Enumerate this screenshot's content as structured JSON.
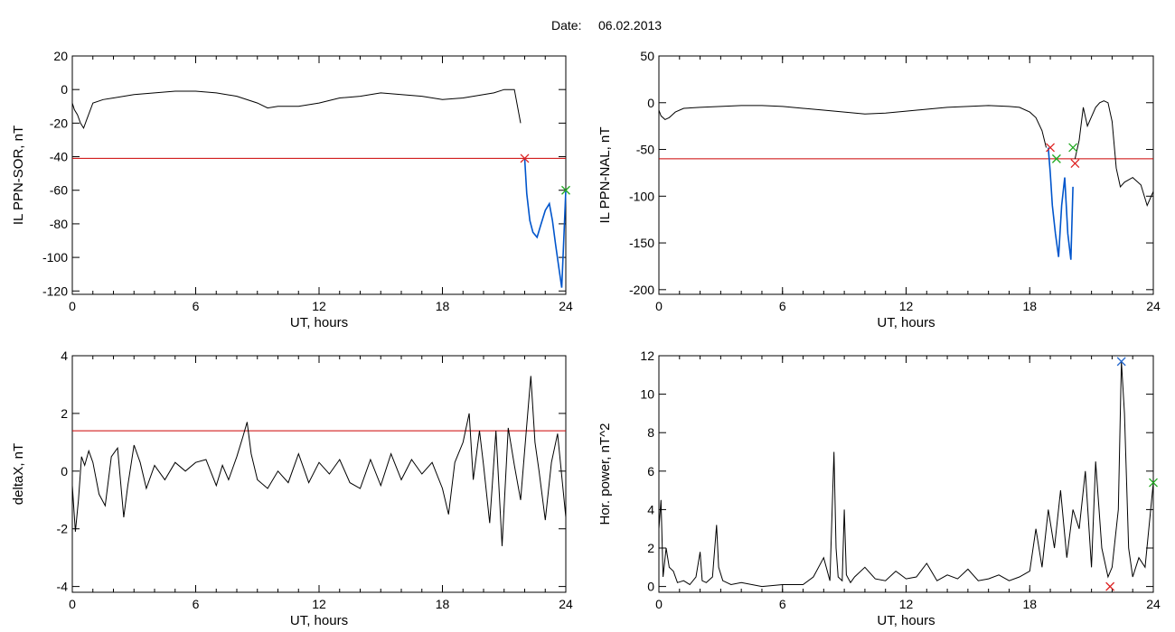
{
  "figure": {
    "title_label": "Date:",
    "title_value": "06.02.2013"
  },
  "colors": {
    "trace": "#000000",
    "threshold": "#cc0000",
    "highlight": "#0055cc",
    "marker_red": "#dd2222",
    "marker_green": "#22aa22",
    "marker_blue": "#2266cc"
  },
  "chart_data": [
    {
      "id": "ppn_sor",
      "type": "line",
      "xlabel": "UT, hours",
      "ylabel": "IL PPN-SOR, nT",
      "xlim": [
        0,
        24
      ],
      "ylim": [
        -122,
        20
      ],
      "xticks": [
        0,
        6,
        12,
        18,
        24
      ],
      "yticks": [
        20,
        0,
        -20,
        -40,
        -60,
        -80,
        -100,
        -120
      ],
      "threshold": -41,
      "series": [
        {
          "x": [
            0,
            0.1,
            0.25,
            0.4,
            0.55,
            0.7,
            1,
            1.5,
            2,
            3,
            4,
            5,
            6,
            7,
            8,
            9,
            9.5,
            10,
            11,
            12,
            13,
            14,
            15,
            16,
            17,
            18,
            19,
            20,
            20.5,
            21,
            21.5,
            21.8
          ],
          "y": [
            -8,
            -12,
            -15,
            -20,
            -23,
            -18,
            -8,
            -6,
            -5,
            -3,
            -2,
            -1,
            -1,
            -2,
            -4,
            -8,
            -11,
            -10,
            -10,
            -8,
            -5,
            -4,
            -2,
            -3,
            -4,
            -6,
            -5,
            -3,
            -2,
            0,
            0,
            -20
          ]
        },
        {
          "color": "highlight",
          "x": [
            22,
            22.1,
            22.25,
            22.4,
            22.6,
            22.8,
            23,
            23.2,
            23.35,
            23.5,
            23.65,
            23.8,
            23.9,
            24
          ],
          "y": [
            -41,
            -62,
            -78,
            -85,
            -88,
            -80,
            -72,
            -68,
            -78,
            -92,
            -105,
            -118,
            -90,
            -60
          ]
        }
      ],
      "markers": [
        {
          "x": 22.0,
          "y": -41,
          "color": "marker_red"
        },
        {
          "x": 24.0,
          "y": -60,
          "color": "marker_green"
        }
      ]
    },
    {
      "id": "ppn_nal",
      "type": "line",
      "xlabel": "UT, hours",
      "ylabel": "IL PPN-NAL, nT",
      "xlim": [
        0,
        24
      ],
      "ylim": [
        -205,
        50
      ],
      "xticks": [
        0,
        6,
        12,
        18,
        24
      ],
      "yticks": [
        50,
        0,
        -50,
        -100,
        -150,
        -200
      ],
      "threshold": -60,
      "series": [
        {
          "x": [
            0,
            0.1,
            0.3,
            0.5,
            0.8,
            1.2,
            2,
            3,
            4,
            5,
            6,
            7,
            8,
            9,
            10,
            11,
            12,
            13,
            14,
            15,
            16,
            17,
            17.5,
            18,
            18.3,
            18.6,
            18.8
          ],
          "y": [
            -8,
            -14,
            -18,
            -16,
            -10,
            -6,
            -5,
            -4,
            -3,
            -3,
            -4,
            -6,
            -8,
            -10,
            -12,
            -11,
            -9,
            -7,
            -5,
            -4,
            -3,
            -4,
            -5,
            -10,
            -16,
            -30,
            -48
          ]
        },
        {
          "color": "highlight",
          "x": [
            18.9,
            19.0,
            19.1,
            19.25,
            19.4,
            19.55,
            19.7,
            19.85,
            20.0,
            20.1
          ],
          "y": [
            -48,
            -75,
            -110,
            -140,
            -165,
            -110,
            -80,
            -140,
            -168,
            -90
          ]
        },
        {
          "x": [
            20.2,
            20.4,
            20.6,
            20.8,
            21.0,
            21.2,
            21.4,
            21.6,
            21.8,
            22.0,
            22.2,
            22.4,
            22.6,
            23.0,
            23.4,
            23.7,
            24.0
          ],
          "y": [
            -60,
            -40,
            -5,
            -25,
            -15,
            -5,
            0,
            2,
            0,
            -20,
            -70,
            -90,
            -85,
            -80,
            -88,
            -110,
            -95
          ]
        }
      ],
      "markers": [
        {
          "x": 19.0,
          "y": -48,
          "color": "marker_red"
        },
        {
          "x": 19.3,
          "y": -60,
          "color": "marker_green"
        },
        {
          "x": 20.1,
          "y": -48,
          "color": "marker_green"
        },
        {
          "x": 20.2,
          "y": -65,
          "color": "marker_red"
        }
      ]
    },
    {
      "id": "deltax",
      "type": "line",
      "xlabel": "UT, hours",
      "ylabel": "deltaX, nT",
      "xlim": [
        0,
        24
      ],
      "ylim": [
        -4.2,
        4
      ],
      "xticks": [
        0,
        6,
        12,
        18,
        24
      ],
      "yticks": [
        4,
        2,
        0,
        -2,
        -4
      ],
      "threshold": 1.4,
      "series": [
        {
          "x": [
            0,
            0.15,
            0.3,
            0.45,
            0.6,
            0.8,
            1,
            1.3,
            1.6,
            1.9,
            2.2,
            2.5,
            2.7,
            3,
            3.3,
            3.6,
            4,
            4.5,
            5,
            5.5,
            6,
            6.5,
            7,
            7.3,
            7.6,
            8,
            8.3,
            8.5,
            8.7,
            9,
            9.5,
            10,
            10.5,
            11,
            11.5,
            12,
            12.5,
            13,
            13.5,
            14,
            14.5,
            15,
            15.5,
            16,
            16.5,
            17,
            17.5,
            18,
            18.3,
            18.6,
            19,
            19.3,
            19.5,
            19.8,
            20,
            20.3,
            20.6,
            20.9,
            21.2,
            21.5,
            21.8,
            22.1,
            22.3,
            22.5,
            22.7,
            23,
            23.3,
            23.6,
            24
          ],
          "y": [
            -0.5,
            -2.1,
            -1.0,
            0.5,
            0.2,
            0.7,
            0.3,
            -0.8,
            -1.2,
            0.5,
            0.8,
            -1.6,
            -0.5,
            0.9,
            0.3,
            -0.6,
            0.2,
            -0.3,
            0.3,
            0.0,
            0.3,
            0.4,
            -0.5,
            0.2,
            -0.3,
            0.5,
            1.2,
            1.7,
            0.6,
            -0.3,
            -0.6,
            0.0,
            -0.4,
            0.6,
            -0.4,
            0.3,
            -0.1,
            0.4,
            -0.4,
            -0.6,
            0.4,
            -0.5,
            0.6,
            -0.3,
            0.4,
            -0.1,
            0.3,
            -0.6,
            -1.5,
            0.3,
            1.0,
            2.0,
            -0.3,
            1.4,
            0.2,
            -1.8,
            1.4,
            -2.6,
            1.5,
            0.2,
            -1.0,
            1.6,
            3.3,
            1.0,
            0.0,
            -1.7,
            0.3,
            1.3,
            -1.6
          ]
        }
      ],
      "markers": []
    },
    {
      "id": "hor_power",
      "type": "line",
      "xlabel": "UT, hours",
      "ylabel": "Hor. power, nT^2",
      "xlim": [
        0,
        24
      ],
      "ylim": [
        -0.3,
        12
      ],
      "xticks": [
        0,
        6,
        12,
        18,
        24
      ],
      "yticks": [
        12,
        10,
        8,
        6,
        4,
        2,
        0
      ],
      "threshold": null,
      "series": [
        {
          "x": [
            0,
            0.1,
            0.2,
            0.35,
            0.5,
            0.7,
            0.9,
            1.2,
            1.5,
            1.8,
            2.0,
            2.1,
            2.3,
            2.6,
            2.8,
            2.9,
            3.1,
            3.5,
            4,
            5,
            6,
            7,
            7.5,
            8,
            8.3,
            8.5,
            8.6,
            8.7,
            8.9,
            9.0,
            9.1,
            9.3,
            9.5,
            10,
            10.5,
            11,
            11.5,
            12,
            12.5,
            13,
            13.5,
            14,
            14.5,
            15,
            15.5,
            16,
            16.5,
            17,
            17.5,
            18,
            18.3,
            18.6,
            18.9,
            19.2,
            19.5,
            19.8,
            20.1,
            20.4,
            20.7,
            21.0,
            21.2,
            21.5,
            21.8,
            22.0,
            22.3,
            22.45,
            22.6,
            22.8,
            23.0,
            23.3,
            23.6,
            24
          ],
          "y": [
            3,
            4.5,
            0.5,
            2.0,
            1.0,
            0.8,
            0.2,
            0.3,
            0.1,
            0.5,
            1.8,
            0.3,
            0.2,
            0.5,
            3.2,
            1.0,
            0.3,
            0.1,
            0.2,
            0.0,
            0.1,
            0.1,
            0.5,
            1.5,
            0.3,
            7.0,
            2.0,
            0.5,
            0.3,
            4.0,
            0.6,
            0.2,
            0.5,
            1.0,
            0.4,
            0.3,
            0.8,
            0.4,
            0.5,
            1.2,
            0.3,
            0.6,
            0.4,
            0.9,
            0.3,
            0.4,
            0.6,
            0.3,
            0.5,
            0.8,
            3.0,
            1.0,
            4.0,
            2.0,
            5.0,
            1.5,
            4.0,
            3.0,
            6.0,
            1.0,
            6.5,
            2.0,
            0.5,
            1.0,
            4.0,
            11.7,
            9.0,
            2.0,
            0.5,
            1.5,
            1.0,
            5.4
          ]
        }
      ],
      "markers": [
        {
          "x": 22.45,
          "y": 11.7,
          "color": "marker_blue"
        },
        {
          "x": 21.9,
          "y": 0.0,
          "color": "marker_red"
        },
        {
          "x": 24.0,
          "y": 5.4,
          "color": "marker_green"
        }
      ]
    }
  ]
}
